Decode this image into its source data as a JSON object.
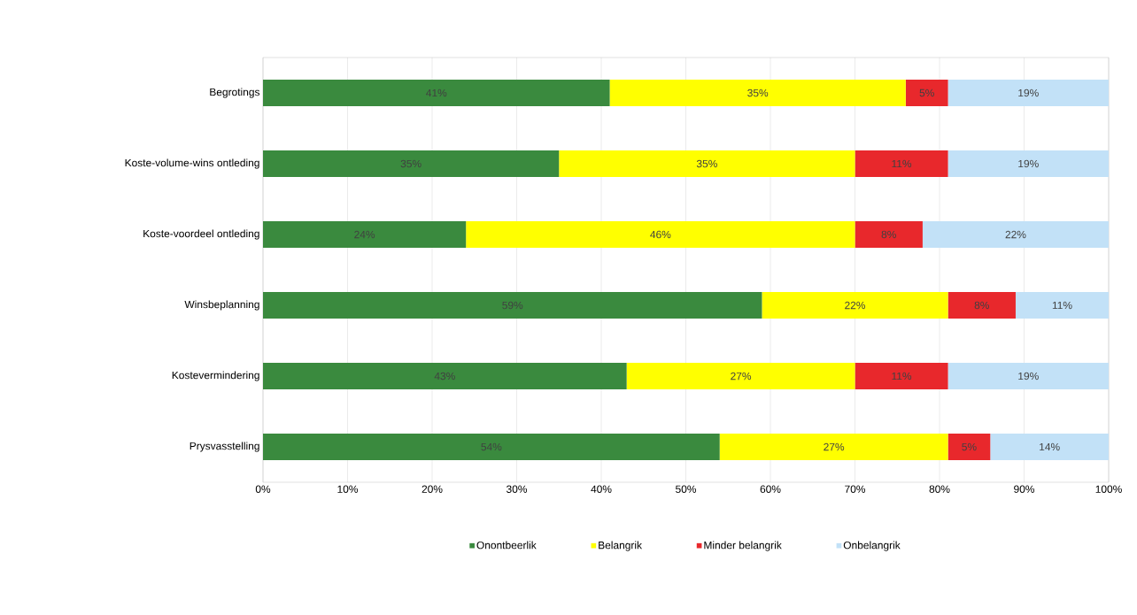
{
  "chart_data": {
    "type": "bar",
    "orientation": "horizontal",
    "stacked": true,
    "categories": [
      "Begrotings",
      "Koste-volume-wins ontleding",
      "Koste-voordeel ontleding",
      "Winsbeplanning",
      "Kostevermindering",
      "Prysvasstelling"
    ],
    "series": [
      {
        "name": "Onontbeerlik",
        "color": "#3a8a3e",
        "values": [
          41,
          35,
          24,
          59,
          43,
          54
        ],
        "value_labels": [
          "41%",
          "35%",
          "24%",
          "59%",
          "43%",
          "54%"
        ]
      },
      {
        "name": "Belangrik",
        "color": "#ffff00",
        "values": [
          35,
          35,
          46,
          22,
          27,
          27
        ],
        "value_labels": [
          "35%",
          "35%",
          "46%",
          "22%",
          "27%",
          "27%"
        ]
      },
      {
        "name": "Minder belangrik",
        "color": "#e8282c",
        "values": [
          5,
          11,
          8,
          8,
          11,
          5
        ],
        "value_labels": [
          "5%",
          "11%",
          "8%",
          "8%",
          "11%",
          "5%"
        ]
      },
      {
        "name": "Onbelangrik",
        "color": "#c2e1f7",
        "values": [
          19,
          19,
          22,
          11,
          19,
          14
        ],
        "value_labels": [
          "19%",
          "19%",
          "22%",
          "11%",
          "19%",
          "14%"
        ]
      }
    ],
    "xlim": [
      0,
      100
    ],
    "xticks": [
      {
        "value": 0,
        "label": "0%"
      },
      {
        "value": 10,
        "label": "10%"
      },
      {
        "value": 20,
        "label": "20%"
      },
      {
        "value": 30,
        "label": "30%"
      },
      {
        "value": 40,
        "label": "40%"
      },
      {
        "value": 50,
        "label": "50%"
      },
      {
        "value": 60,
        "label": "60%"
      },
      {
        "value": 70,
        "label": "70%"
      },
      {
        "value": 80,
        "label": "80%"
      },
      {
        "value": 90,
        "label": "90%"
      },
      {
        "value": 100,
        "label": "100%"
      }
    ],
    "grid": "x",
    "legend": "bottom"
  }
}
